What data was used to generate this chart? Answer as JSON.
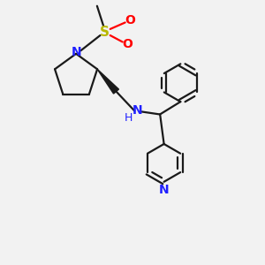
{
  "bg_color": "#f2f2f2",
  "bond_color": "#1a1a1a",
  "N_color": "#2020ff",
  "S_color": "#b8b800",
  "O_color": "#ff0000",
  "line_width": 1.6,
  "font_size": 10,
  "xlim": [
    0,
    10
  ],
  "ylim": [
    0,
    10
  ]
}
